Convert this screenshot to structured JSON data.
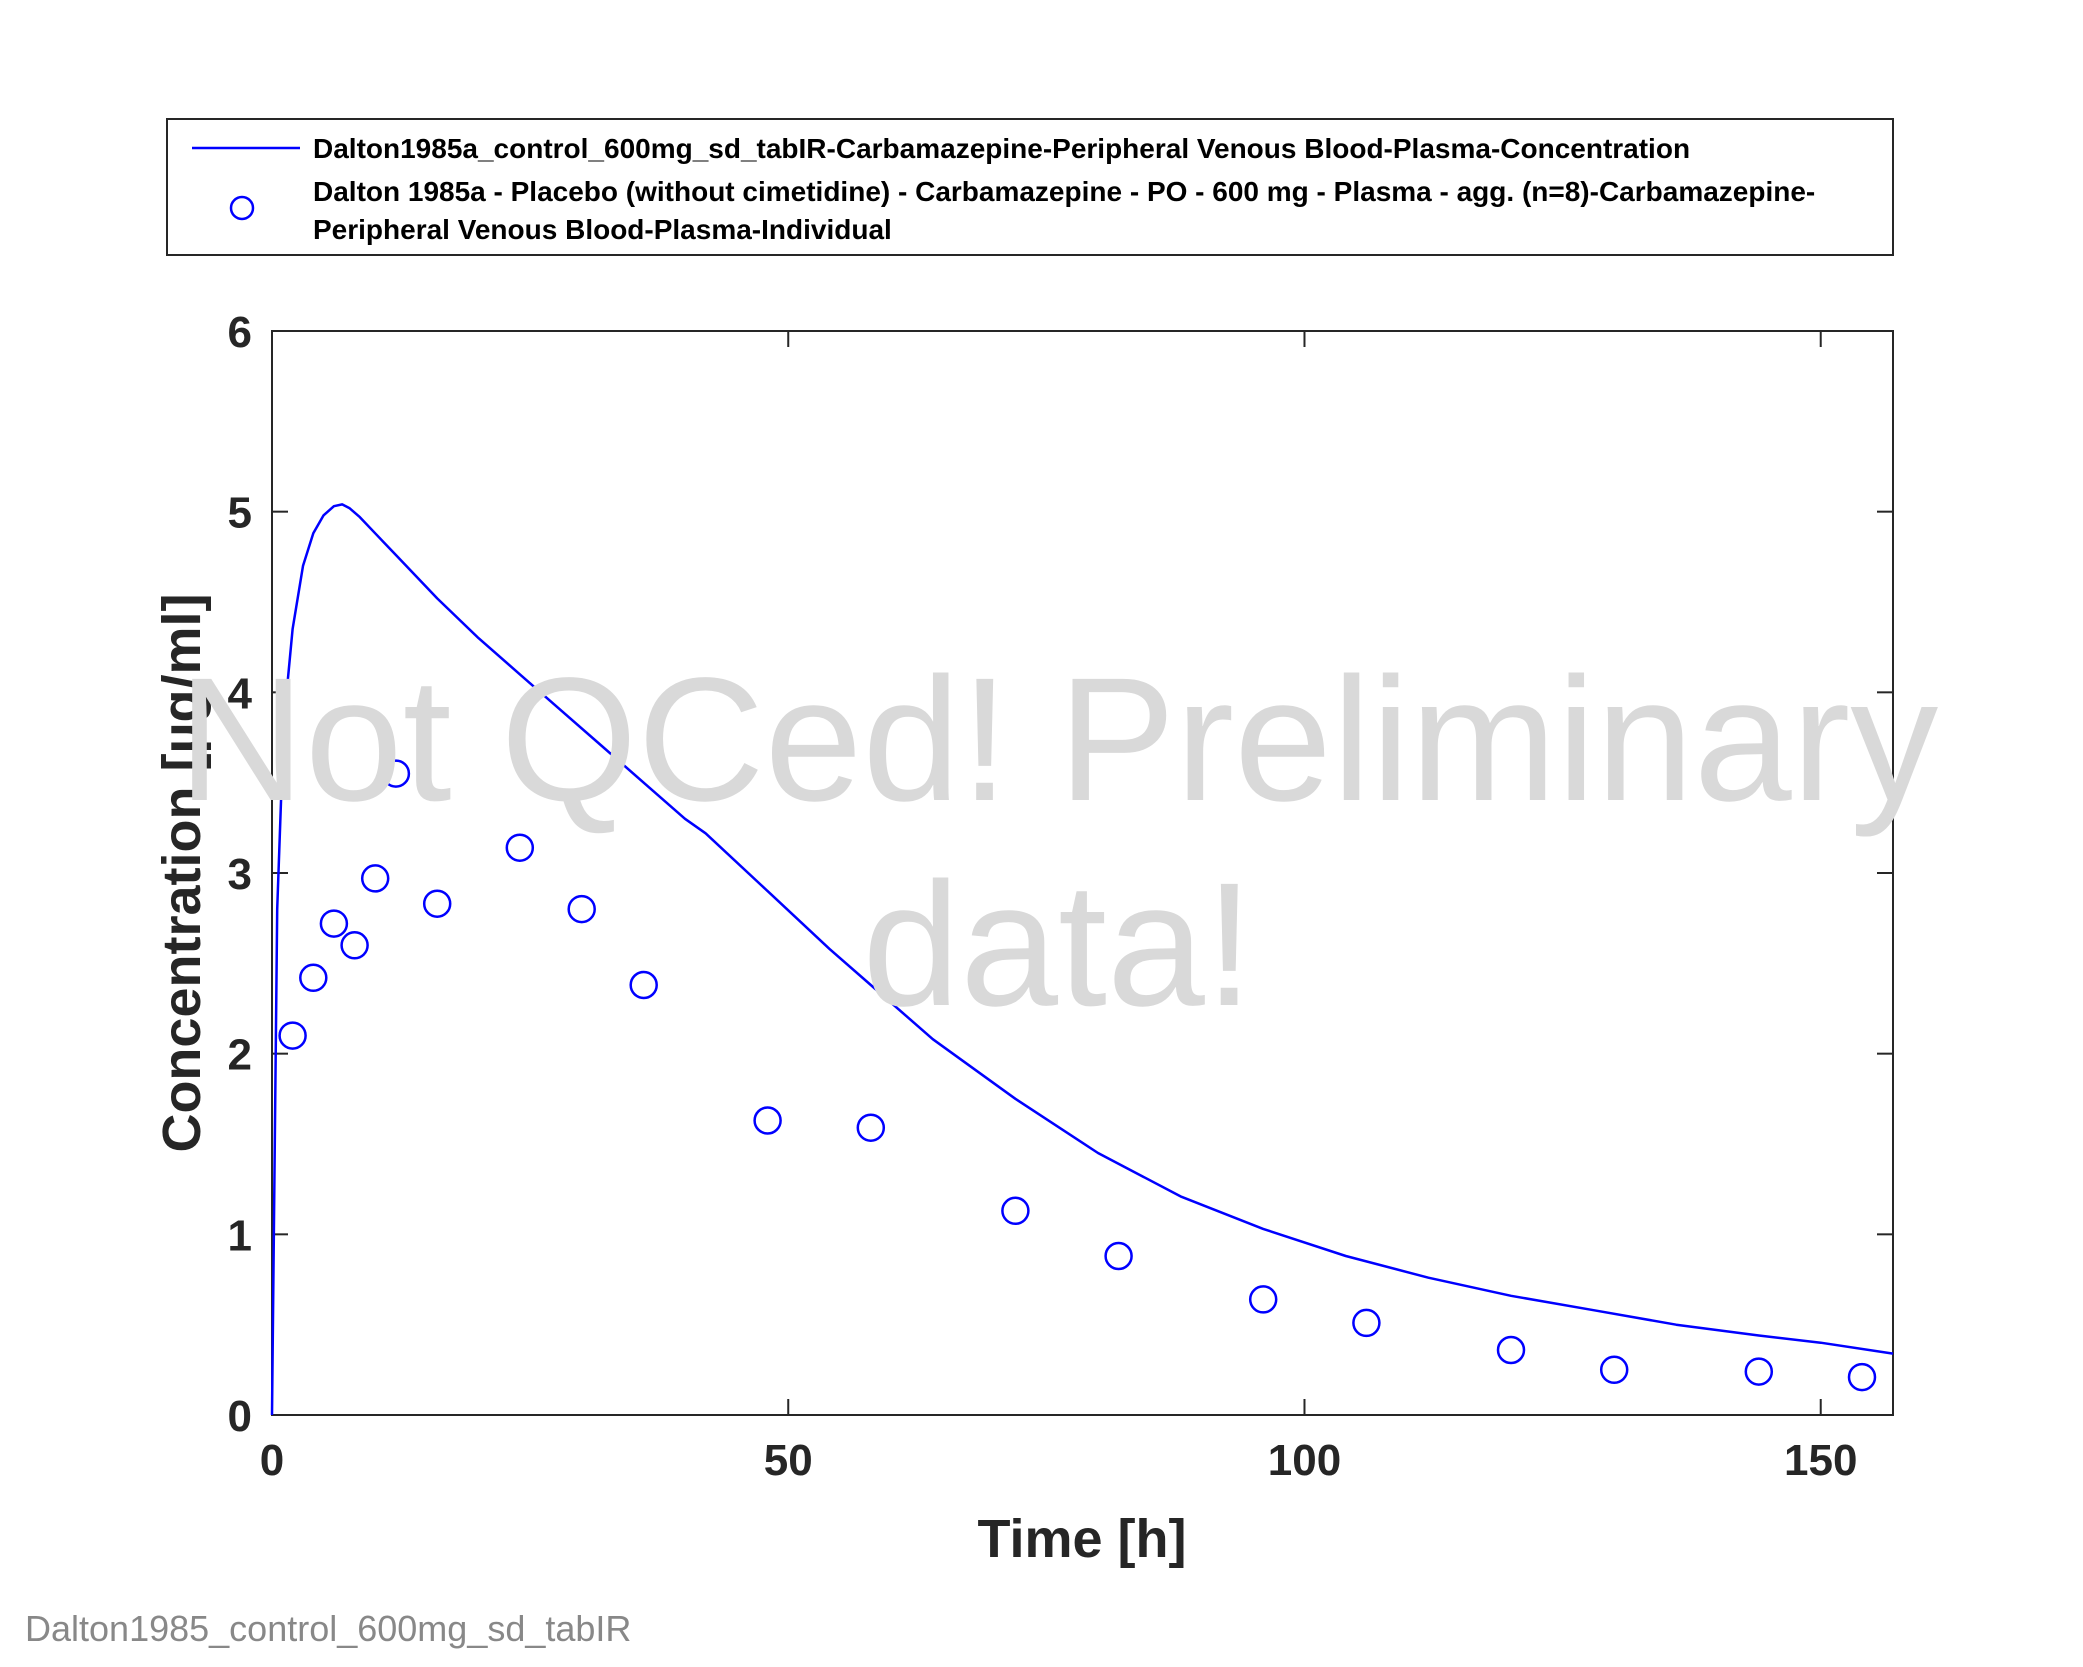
{
  "chart_data": {
    "type": "line",
    "xlabel": "Time [h]",
    "ylabel": "Concentration [µg/ml]",
    "xlim": [
      0,
      157
    ],
    "ylim": [
      0,
      6
    ],
    "xticks": [
      0,
      50,
      100,
      150
    ],
    "yticks": [
      0,
      1,
      2,
      3,
      4,
      5,
      6
    ],
    "grid": false,
    "legend_position": "top-outside",
    "series": [
      {
        "name": "Dalton1985a_control_600mg_sd_tabIR-Carbamazepine-Peripheral Venous Blood-Plasma-Concentration",
        "style": "line",
        "color": "#0000ff",
        "x": [
          0,
          0.5,
          1,
          1.5,
          2,
          3,
          4,
          5,
          6,
          6.8,
          7.5,
          8.5,
          10,
          12,
          16,
          20,
          24,
          28,
          32,
          36,
          40,
          42,
          48,
          54,
          58,
          64,
          72,
          80,
          88,
          96,
          104,
          112,
          120,
          128,
          136,
          144,
          150,
          157
        ],
        "y": [
          0,
          2.8,
          3.6,
          4.05,
          4.35,
          4.7,
          4.88,
          4.98,
          5.03,
          5.04,
          5.02,
          4.97,
          4.88,
          4.76,
          4.52,
          4.3,
          4.1,
          3.9,
          3.7,
          3.5,
          3.3,
          3.22,
          2.9,
          2.58,
          2.38,
          2.08,
          1.75,
          1.45,
          1.21,
          1.03,
          0.88,
          0.76,
          0.66,
          0.58,
          0.5,
          0.44,
          0.4,
          0.34
        ]
      },
      {
        "name": "Dalton 1985a - Placebo (without cimetidine) - Carbamazepine - PO - 600 mg - Plasma - agg. (n=8)-Carbamazepine-Peripheral Venous Blood-Plasma-Individual",
        "style": "marker",
        "marker": "circle",
        "color": "#0000ff",
        "x": [
          2,
          4,
          6,
          8,
          10,
          12,
          16,
          24,
          30,
          36,
          48,
          58,
          72,
          82,
          96,
          106,
          120,
          130,
          144,
          154
        ],
        "y": [
          2.1,
          2.42,
          2.72,
          2.6,
          2.97,
          3.55,
          2.83,
          3.14,
          2.8,
          2.38,
          1.63,
          1.59,
          1.13,
          0.88,
          0.64,
          0.51,
          0.36,
          0.25,
          0.24,
          0.21
        ]
      }
    ],
    "legend": {
      "line_label": "Dalton1985a_control_600mg_sd_tabIR-Carbamazepine-Peripheral Venous Blood-Plasma-Concentration",
      "marker_label_line1": "Dalton 1985a - Placebo (without cimetidine) - Carbamazepine - PO - 600 mg - Plasma - agg. (n=8)-Carbamazepine-",
      "marker_label_line2": "Peripheral Venous Blood-Plasma-Individual"
    },
    "watermark": {
      "line1": "Not QCed! Preliminary",
      "line2": "data!"
    }
  },
  "footer": {
    "text": "Dalton1985_control_600mg_sd_tabIR"
  }
}
